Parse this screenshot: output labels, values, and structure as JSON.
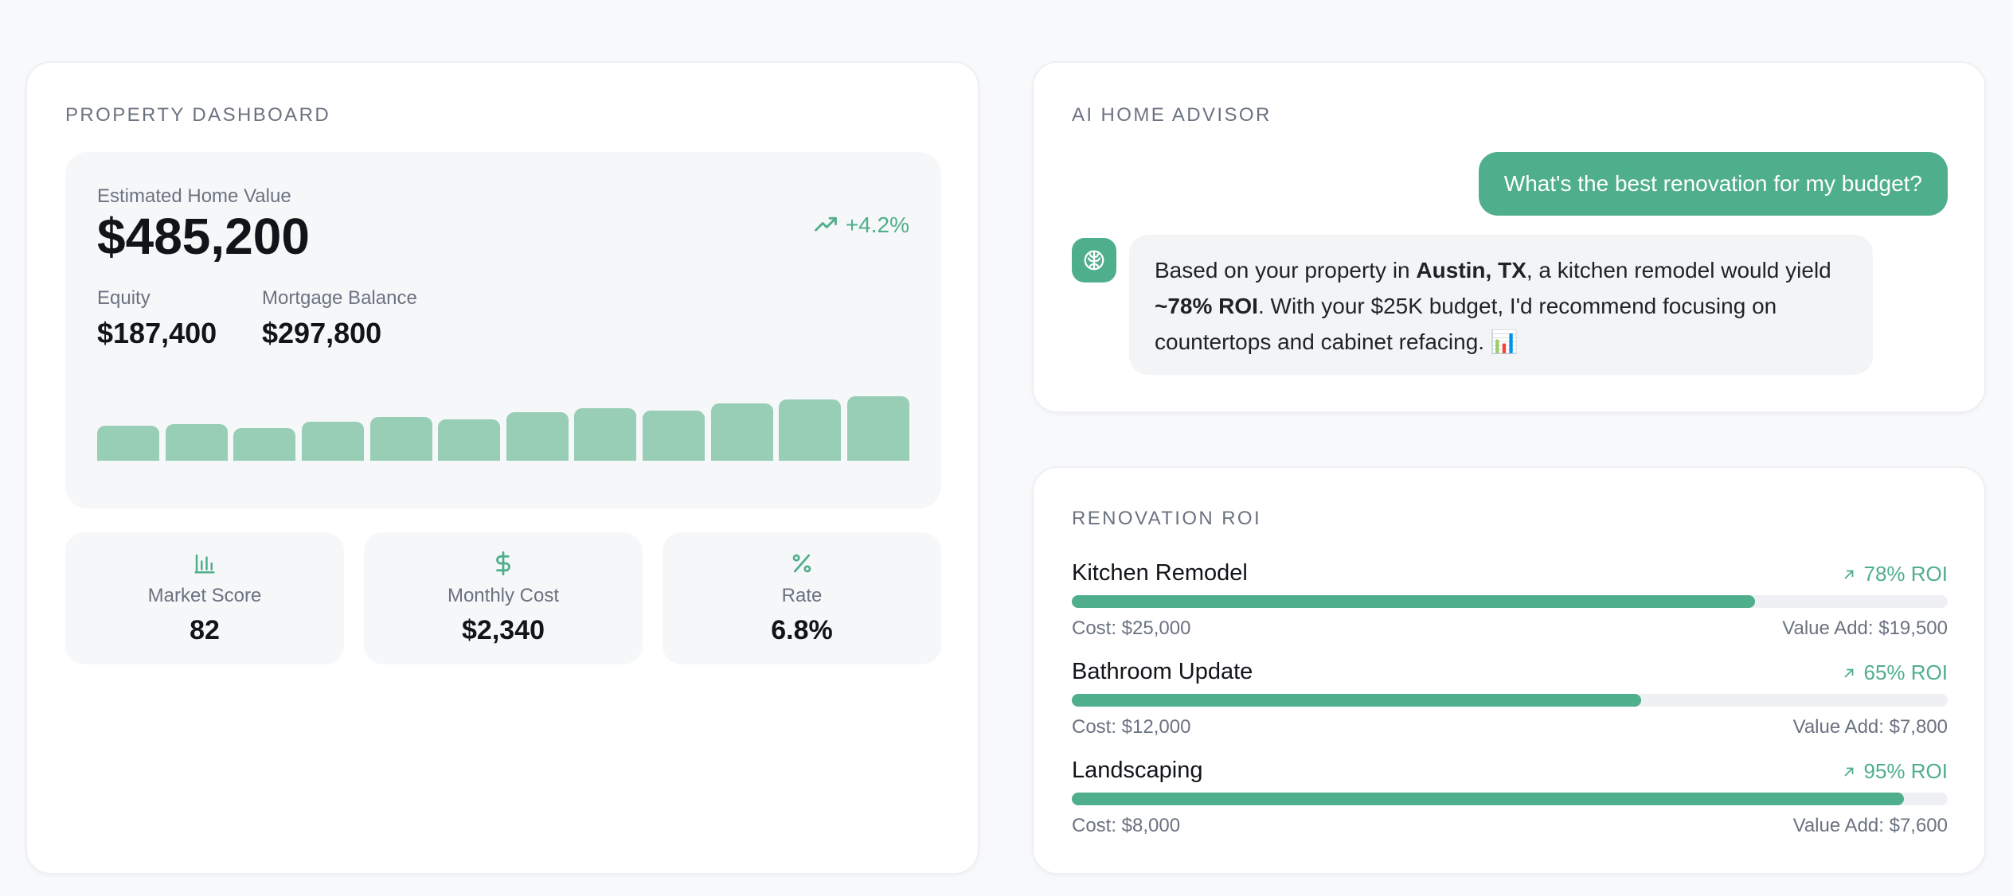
{
  "colors": {
    "accent": "#4fae8b",
    "bar": "#98cdb6",
    "background": "#f8f9fb"
  },
  "dashboard": {
    "title": "PROPERTY DASHBOARD",
    "home_value_label": "Estimated Home Value",
    "home_value": "$485,200",
    "change": "+4.2%",
    "change_icon": "trending-up-icon",
    "equity_label": "Equity",
    "equity_value": "$187,400",
    "mortgage_label": "Mortgage Balance",
    "mortgage_value": "$297,800",
    "trend_bar_levels": [
      0.52,
      0.55,
      0.49,
      0.58,
      0.65,
      0.62,
      0.73,
      0.78,
      0.75,
      0.86,
      0.92,
      0.96
    ],
    "stats": [
      {
        "icon": "bar-chart-icon",
        "label": "Market Score",
        "value": "82"
      },
      {
        "icon": "dollar-icon",
        "label": "Monthly Cost",
        "value": "$2,340"
      },
      {
        "icon": "percent-icon",
        "label": "Rate",
        "value": "6.8%"
      }
    ]
  },
  "advisor": {
    "title": "AI HOME ADVISOR",
    "user_message": "What's the best renovation for my budget?",
    "ai_icon": "brain-icon",
    "ai_message": {
      "p1": "Based on your property in ",
      "b1": "Austin, TX",
      "p2": ", a kitchen remodel would yield ",
      "b2": "~78% ROI",
      "p3": ". With your $25K budget, I'd recommend focusing on countertops and cabinet refacing. ",
      "emoji": "📊"
    }
  },
  "roi": {
    "title": "RENOVATION ROI",
    "items": [
      {
        "name": "Kitchen Remodel",
        "roi": "78% ROI",
        "roi_value": 78,
        "cost": "Cost: $25,000",
        "value_add": "Value Add: $19,500"
      },
      {
        "name": "Bathroom Update",
        "roi": "65% ROI",
        "roi_value": 65,
        "cost": "Cost: $12,000",
        "value_add": "Value Add: $7,800"
      },
      {
        "name": "Landscaping",
        "roi": "95% ROI",
        "roi_value": 95,
        "cost": "Cost: $8,000",
        "value_add": "Value Add: $7,600"
      }
    ]
  }
}
